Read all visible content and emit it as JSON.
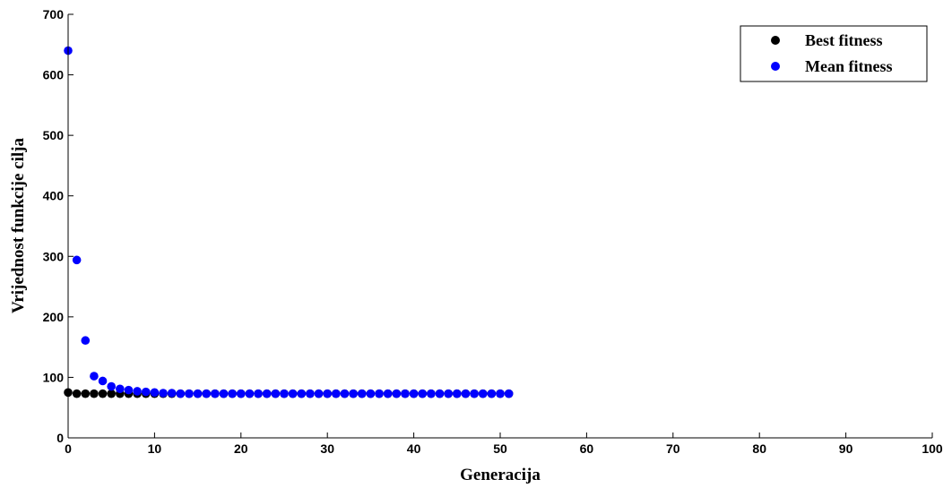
{
  "chart_data": {
    "type": "scatter",
    "title": "",
    "xlabel": "Generacija",
    "ylabel": "Vrijednost funkcije cilja",
    "xlim": [
      0,
      100
    ],
    "ylim": [
      0,
      700
    ],
    "xticks": [
      0,
      10,
      20,
      30,
      40,
      50,
      60,
      70,
      80,
      90,
      100
    ],
    "yticks": [
      0,
      100,
      200,
      300,
      400,
      500,
      600,
      700
    ],
    "grid": false,
    "legend_position": "top-right",
    "series": [
      {
        "name": "Best fitness",
        "color": "#000000",
        "x": [
          0,
          1,
          2,
          3,
          4,
          5,
          6,
          7,
          8,
          9,
          10,
          11,
          12,
          13,
          14,
          15,
          16,
          17,
          18,
          19,
          20,
          21,
          22,
          23,
          24,
          25,
          26,
          27,
          28,
          29,
          30,
          31,
          32,
          33,
          34,
          35,
          36,
          37,
          38,
          39,
          40,
          41,
          42,
          43,
          44,
          45,
          46,
          47,
          48,
          49,
          50,
          51
        ],
        "y": [
          75,
          73,
          73,
          73,
          73,
          73,
          73,
          73,
          73,
          73,
          73,
          73,
          73,
          73,
          73,
          73,
          73,
          73,
          73,
          73,
          73,
          73,
          73,
          73,
          73,
          73,
          73,
          73,
          73,
          73,
          73,
          73,
          73,
          73,
          73,
          73,
          73,
          73,
          73,
          73,
          73,
          73,
          73,
          73,
          73,
          73,
          73,
          73,
          73,
          73,
          73,
          73
        ]
      },
      {
        "name": "Mean fitness",
        "color": "#0000ff",
        "x": [
          0,
          1,
          2,
          3,
          4,
          5,
          6,
          7,
          8,
          9,
          10,
          11,
          12,
          13,
          14,
          15,
          16,
          17,
          18,
          19,
          20,
          21,
          22,
          23,
          24,
          25,
          26,
          27,
          28,
          29,
          30,
          31,
          32,
          33,
          34,
          35,
          36,
          37,
          38,
          39,
          40,
          41,
          42,
          43,
          44,
          45,
          46,
          47,
          48,
          49,
          50,
          51
        ],
        "y": [
          640,
          294,
          161,
          102,
          94,
          85,
          81,
          79,
          77,
          76,
          75,
          74,
          74,
          73,
          73,
          73,
          73,
          73,
          73,
          73,
          73,
          73,
          73,
          73,
          73,
          73,
          73,
          73,
          73,
          73,
          73,
          73,
          73,
          73,
          73,
          73,
          73,
          73,
          73,
          73,
          73,
          73,
          73,
          73,
          73,
          73,
          73,
          73,
          73,
          73,
          73,
          73
        ]
      }
    ]
  }
}
